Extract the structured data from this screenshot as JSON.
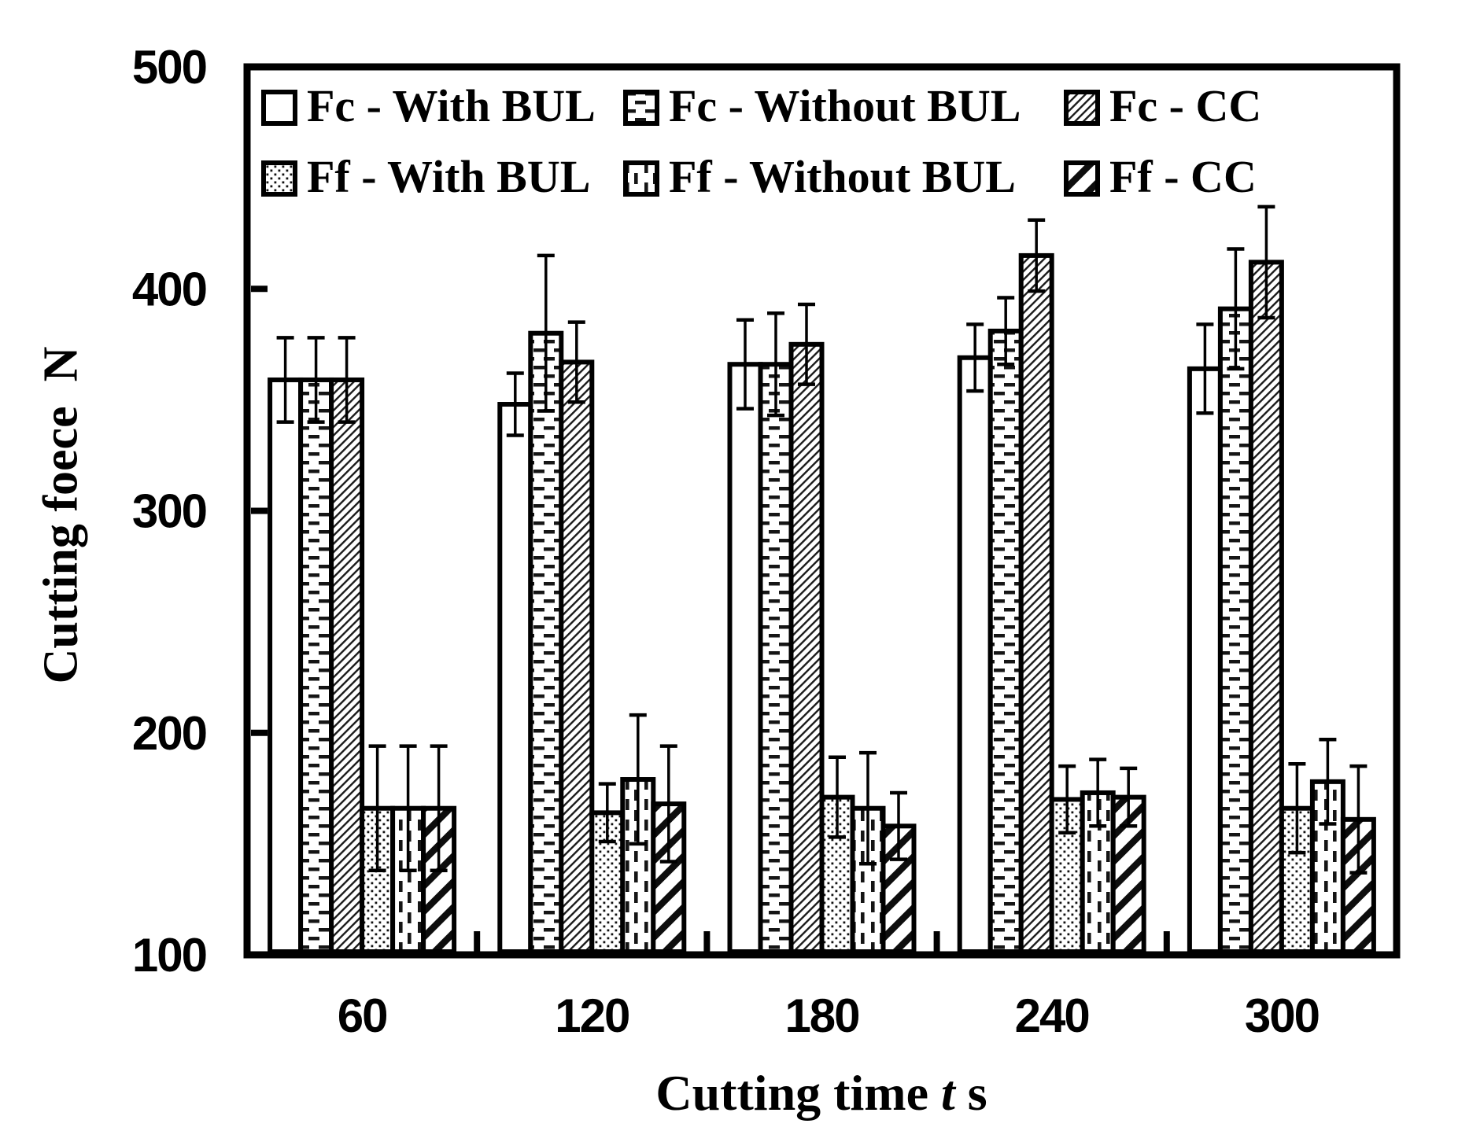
{
  "figure": {
    "ylabel": "Cutting foece  N",
    "xlabel_prefix": "Cutting time ",
    "xlabel_var": "t",
    "xlabel_unit": " s",
    "ink_color": "#000000",
    "background_color": "#ffffff"
  },
  "chart_data": {
    "type": "bar",
    "title": "",
    "xlabel": "Cutting time t s",
    "ylabel": "Cutting foece N",
    "categories": [
      "60",
      "120",
      "180",
      "240",
      "300"
    ],
    "ylim": [
      100,
      500
    ],
    "yticks": [
      100,
      200,
      300,
      400,
      500
    ],
    "grid": false,
    "legend_position": "top-inside",
    "error_bars": true,
    "series": [
      {
        "name": "Fc - With BUL",
        "pattern": "fc-with-bul",
        "values": [
          359,
          348,
          366,
          369,
          364
        ],
        "errors": [
          19,
          14,
          20,
          15,
          20
        ]
      },
      {
        "name": "Fc - Without BUL",
        "pattern": "fc-without-bul",
        "values": [
          359,
          380,
          366,
          381,
          391
        ],
        "errors": [
          19,
          35,
          23,
          15,
          27
        ]
      },
      {
        "name": "Fc - CC",
        "pattern": "fc-cc",
        "values": [
          359,
          367,
          375,
          415,
          412
        ],
        "errors": [
          19,
          18,
          18,
          16,
          25
        ]
      },
      {
        "name": "Ff - With BUL",
        "pattern": "ff-with-bul",
        "values": [
          166,
          164,
          171,
          170,
          166
        ],
        "errors": [
          28,
          13,
          18,
          15,
          20
        ]
      },
      {
        "name": "Ff - Without BUL",
        "pattern": "ff-without-bul",
        "values": [
          166,
          179,
          166,
          173,
          178
        ],
        "errors": [
          28,
          29,
          25,
          15,
          19
        ]
      },
      {
        "name": "Ff - CC",
        "pattern": "ff-cc",
        "values": [
          166,
          168,
          158,
          171,
          161
        ],
        "errors": [
          28,
          26,
          15,
          13,
          24
        ]
      }
    ]
  }
}
